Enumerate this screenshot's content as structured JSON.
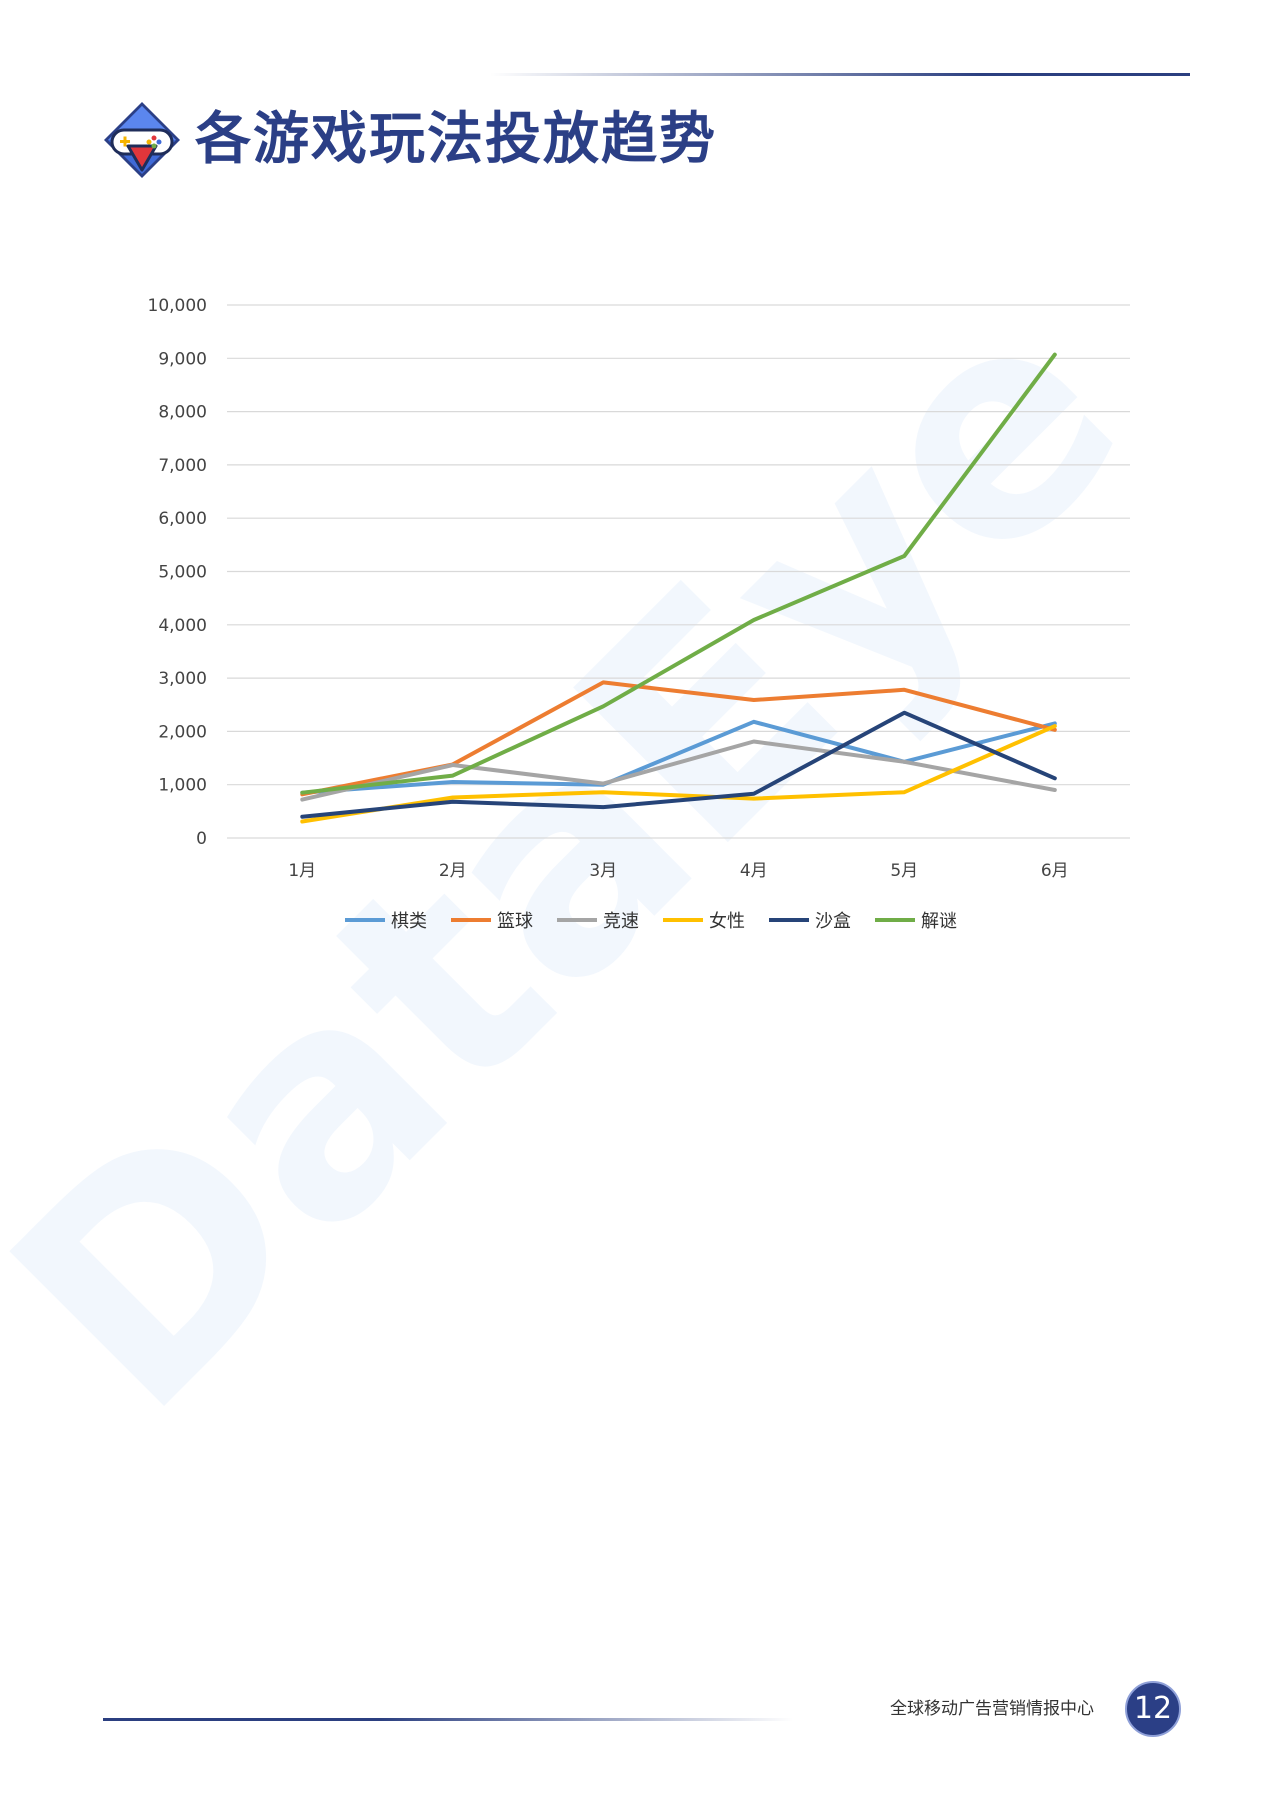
{
  "page": {
    "title": "各游戏玩法投放趋势",
    "footer": "全球移动广告营销情报中心",
    "page_number": "12",
    "watermark_text": "DataEye"
  },
  "chart_data": {
    "type": "line",
    "title": "",
    "xlabel": "",
    "ylabel": "",
    "categories": [
      "1月",
      "2月",
      "3月",
      "4月",
      "5月",
      "6月"
    ],
    "ylim": [
      0,
      10000
    ],
    "yticks": [
      "0",
      "1,000",
      "2,000",
      "3,000",
      "4,000",
      "5,000",
      "6,000",
      "7,000",
      "8,000",
      "9,000",
      "10,000"
    ],
    "grid": true,
    "legend": "bottom",
    "series": [
      {
        "name": "棋类",
        "color": "#5b9bd5",
        "values": [
          850,
          1050,
          1000,
          2180,
          1430,
          2150
        ]
      },
      {
        "name": "篮球",
        "color": "#ed7d31",
        "values": [
          820,
          1380,
          2920,
          2590,
          2780,
          2030
        ]
      },
      {
        "name": "竞速",
        "color": "#a5a5a5",
        "values": [
          720,
          1370,
          1020,
          1810,
          1430,
          900
        ]
      },
      {
        "name": "女性",
        "color": "#ffc000",
        "values": [
          310,
          760,
          860,
          740,
          860,
          2100
        ]
      },
      {
        "name": "沙盒",
        "color": "#264478",
        "values": [
          400,
          680,
          580,
          830,
          2350,
          1120
        ]
      },
      {
        "name": "解谜",
        "color": "#70ad47",
        "values": [
          850,
          1170,
          2470,
          4090,
          5290,
          9070
        ]
      }
    ]
  }
}
